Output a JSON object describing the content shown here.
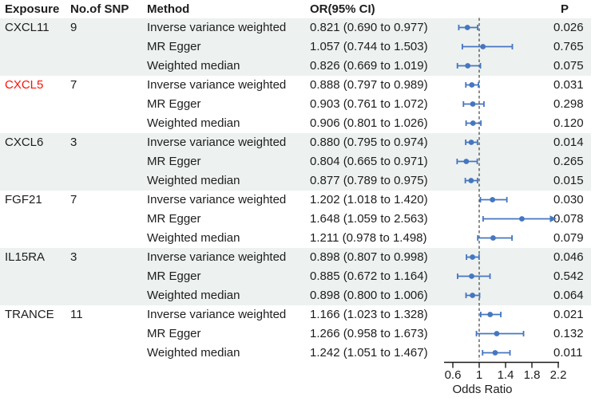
{
  "header": {
    "exposure": "Exposure",
    "snp": "No.of SNP",
    "method": "Method",
    "or_ci": "OR(95% CI)",
    "p": "P"
  },
  "colors": {
    "marker_blue": "#4576c0",
    "band_gray": "#edf1f0",
    "highlight_red": "#fb1105",
    "text_black": "#1d1d1d",
    "axis_black": "#1a1a1a",
    "ref_line_gray": "#3f3f3f"
  },
  "chart_data": {
    "type": "forest",
    "title": "",
    "xlabel": "Odds Ratio",
    "ylabel": "",
    "x_ticks": [
      0.6,
      1.0,
      1.4,
      1.8,
      2.2
    ],
    "x_tick_labels": [
      "0.6",
      "1",
      "1.4",
      "1.8",
      "2.2"
    ],
    "x_range_displayed": [
      0.46,
      2.21
    ],
    "reference_line": 1.0,
    "legend": "none",
    "grid": false,
    "groups": [
      {
        "exposure": "CXCL11",
        "snp": "9",
        "shaded": true,
        "highlighted": false,
        "rows": [
          {
            "method": "Inverse variance weighted",
            "or": 0.821,
            "lo": 0.69,
            "hi": 0.977,
            "or_ci": "0.821 (0.690 to 0.977)",
            "p": "0.026"
          },
          {
            "method": "MR Egger",
            "or": 1.057,
            "lo": 0.744,
            "hi": 1.503,
            "or_ci": "1.057 (0.744 to 1.503)",
            "p": "0.765"
          },
          {
            "method": "Weighted median",
            "or": 0.826,
            "lo": 0.669,
            "hi": 1.019,
            "or_ci": "0.826 (0.669 to 1.019)",
            "p": "0.075"
          }
        ]
      },
      {
        "exposure": "CXCL5",
        "snp": "7",
        "shaded": false,
        "highlighted": true,
        "rows": [
          {
            "method": "Inverse variance weighted",
            "or": 0.888,
            "lo": 0.797,
            "hi": 0.989,
            "or_ci": "0.888 (0.797 to 0.989)",
            "p": "0.031"
          },
          {
            "method": "MR Egger",
            "or": 0.903,
            "lo": 0.761,
            "hi": 1.072,
            "or_ci": "0.903 (0.761 to 1.072)",
            "p": "0.298"
          },
          {
            "method": "Weighted median",
            "or": 0.906,
            "lo": 0.801,
            "hi": 1.026,
            "or_ci": "0.906 (0.801 to 1.026)",
            "p": "0.120"
          }
        ]
      },
      {
        "exposure": "CXCL6",
        "snp": "3",
        "shaded": true,
        "highlighted": false,
        "rows": [
          {
            "method": "Inverse variance weighted",
            "or": 0.88,
            "lo": 0.795,
            "hi": 0.974,
            "or_ci": "0.880 (0.795 to 0.974)",
            "p": "0.014"
          },
          {
            "method": "MR Egger",
            "or": 0.804,
            "lo": 0.665,
            "hi": 0.971,
            "or_ci": "0.804 (0.665 to 0.971)",
            "p": "0.265"
          },
          {
            "method": "Weighted median",
            "or": 0.877,
            "lo": 0.789,
            "hi": 0.975,
            "or_ci": "0.877 (0.789 to 0.975)",
            "p": "0.015"
          }
        ]
      },
      {
        "exposure": "FGF21",
        "snp": "7",
        "shaded": false,
        "highlighted": false,
        "rows": [
          {
            "method": "Inverse variance weighted",
            "or": 1.202,
            "lo": 1.018,
            "hi": 1.42,
            "or_ci": "1.202 (1.018 to 1.420)",
            "p": "0.030"
          },
          {
            "method": "MR Egger",
            "or": 1.648,
            "lo": 1.059,
            "hi": 2.563,
            "or_ci": "1.648 (1.059 to 2.563)",
            "p": "0.078"
          },
          {
            "method": "Weighted median",
            "or": 1.211,
            "lo": 0.978,
            "hi": 1.498,
            "or_ci": "1.211 (0.978 to 1.498)",
            "p": "0.079"
          }
        ]
      },
      {
        "exposure": "IL15RA",
        "snp": "3",
        "shaded": true,
        "highlighted": false,
        "rows": [
          {
            "method": "Inverse variance weighted",
            "or": 0.898,
            "lo": 0.807,
            "hi": 0.998,
            "or_ci": "0.898 (0.807 to 0.998)",
            "p": "0.046"
          },
          {
            "method": "MR Egger",
            "or": 0.885,
            "lo": 0.672,
            "hi": 1.164,
            "or_ci": "0.885 (0.672 to 1.164)",
            "p": "0.542"
          },
          {
            "method": "Weighted median",
            "or": 0.898,
            "lo": 0.8,
            "hi": 1.006,
            "or_ci": "0.898 (0.800 to 1.006)",
            "p": "0.064"
          }
        ]
      },
      {
        "exposure": "TRANCE",
        "snp": "11",
        "shaded": false,
        "highlighted": false,
        "rows": [
          {
            "method": "Inverse variance weighted",
            "or": 1.166,
            "lo": 1.023,
            "hi": 1.328,
            "or_ci": "1.166 (1.023 to 1.328)",
            "p": "0.021"
          },
          {
            "method": "MR Egger",
            "or": 1.266,
            "lo": 0.958,
            "hi": 1.673,
            "or_ci": "1.266 (0.958 to 1.673)",
            "p": "0.132"
          },
          {
            "method": "Weighted median",
            "or": 1.242,
            "lo": 1.051,
            "hi": 1.467,
            "or_ci": "1.242 (1.051 to 1.467)",
            "p": "0.011"
          }
        ]
      }
    ]
  }
}
